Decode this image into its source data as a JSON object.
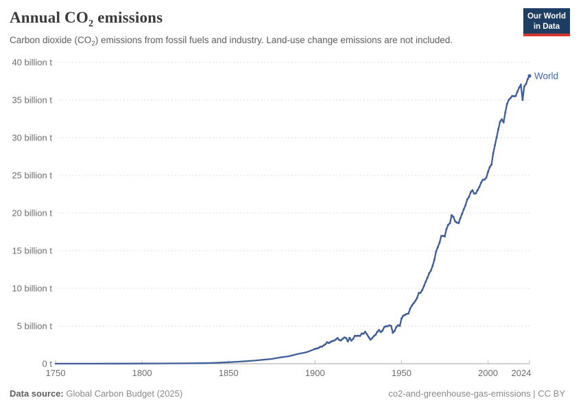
{
  "header": {
    "title_pre": "Annual CO",
    "title_sub": "2",
    "title_post": " emissions",
    "subtitle_pre": "Carbon dioxide (CO",
    "subtitle_sub": "2",
    "subtitle_post": ") emissions from fossil fuels and industry. Land-use change emissions are not included.",
    "logo_line1": "Our World",
    "logo_line2": "in Data"
  },
  "footer": {
    "source_label": "Data source:",
    "source_value": "Global Carbon Budget (2025)",
    "slug": "co2-and-greenhouse-gas-emissions | CC BY"
  },
  "colors": {
    "line_blue": "#3f5d99",
    "entity_label_blue": "#4266a5",
    "logo_navy": "#1d3d63",
    "logo_red": "#d8352e",
    "gridline": "#dedede",
    "axis_line": "#a6a6a6",
    "tick_text": "#6d6d6d"
  },
  "chart_data": {
    "type": "line",
    "title": "Annual CO₂ emissions",
    "xlabel": "",
    "ylabel": "",
    "unit": "billion t",
    "xlim": [
      1750,
      2024
    ],
    "ylim": [
      0,
      40
    ],
    "grid": "dashed-horizontal",
    "legend_position": "end-of-line-label",
    "x_ticks": [
      1750,
      1800,
      1850,
      1900,
      1950,
      2000,
      2024
    ],
    "y_ticks": [
      0,
      5,
      10,
      15,
      20,
      25,
      30,
      35,
      40
    ],
    "y_tick_labels": [
      "0 t",
      "5 billion t",
      "10 billion t",
      "15 billion t",
      "20 billion t",
      "25 billion t",
      "30 billion t",
      "35 billion t",
      "40 billion t"
    ],
    "end_label": "World",
    "series": [
      {
        "name": "World",
        "color": "#3f5d99",
        "label_color": "#4266a5",
        "points": [
          [
            1750,
            0.009
          ],
          [
            1760,
            0.011
          ],
          [
            1770,
            0.013
          ],
          [
            1780,
            0.016
          ],
          [
            1790,
            0.02
          ],
          [
            1800,
            0.03
          ],
          [
            1810,
            0.035
          ],
          [
            1820,
            0.045
          ],
          [
            1830,
            0.066
          ],
          [
            1840,
            0.096
          ],
          [
            1850,
            0.197
          ],
          [
            1855,
            0.26
          ],
          [
            1860,
            0.34
          ],
          [
            1865,
            0.42
          ],
          [
            1870,
            0.53
          ],
          [
            1875,
            0.64
          ],
          [
            1880,
            0.84
          ],
          [
            1885,
            1.0
          ],
          [
            1890,
            1.3
          ],
          [
            1895,
            1.52
          ],
          [
            1900,
            1.96
          ],
          [
            1901,
            2.02
          ],
          [
            1902,
            2.08
          ],
          [
            1903,
            2.25
          ],
          [
            1904,
            2.27
          ],
          [
            1905,
            2.44
          ],
          [
            1906,
            2.58
          ],
          [
            1907,
            2.85
          ],
          [
            1908,
            2.75
          ],
          [
            1909,
            2.88
          ],
          [
            1910,
            3.01
          ],
          [
            1911,
            3.05
          ],
          [
            1912,
            3.21
          ],
          [
            1913,
            3.41
          ],
          [
            1914,
            3.15
          ],
          [
            1915,
            3.1
          ],
          [
            1916,
            3.31
          ],
          [
            1917,
            3.49
          ],
          [
            1918,
            3.4
          ],
          [
            1919,
            2.96
          ],
          [
            1920,
            3.43
          ],
          [
            1921,
            3.07
          ],
          [
            1922,
            3.29
          ],
          [
            1923,
            3.7
          ],
          [
            1924,
            3.69
          ],
          [
            1925,
            3.72
          ],
          [
            1926,
            3.69
          ],
          [
            1927,
            4.01
          ],
          [
            1928,
            3.98
          ],
          [
            1929,
            4.24
          ],
          [
            1930,
            3.92
          ],
          [
            1931,
            3.53
          ],
          [
            1932,
            3.19
          ],
          [
            1933,
            3.38
          ],
          [
            1934,
            3.66
          ],
          [
            1935,
            3.85
          ],
          [
            1936,
            4.24
          ],
          [
            1937,
            4.47
          ],
          [
            1938,
            4.21
          ],
          [
            1939,
            4.39
          ],
          [
            1940,
            4.85
          ],
          [
            1941,
            4.97
          ],
          [
            1942,
            4.98
          ],
          [
            1943,
            5.09
          ],
          [
            1944,
            5.03
          ],
          [
            1945,
            4.1
          ],
          [
            1946,
            4.36
          ],
          [
            1947,
            4.85
          ],
          [
            1948,
            5.12
          ],
          [
            1949,
            5.01
          ],
          [
            1950,
            6.0
          ],
          [
            1951,
            6.37
          ],
          [
            1952,
            6.47
          ],
          [
            1953,
            6.62
          ],
          [
            1954,
            6.66
          ],
          [
            1955,
            7.32
          ],
          [
            1956,
            7.72
          ],
          [
            1957,
            8.03
          ],
          [
            1958,
            8.34
          ],
          [
            1959,
            8.74
          ],
          [
            1960,
            9.39
          ],
          [
            1961,
            9.42
          ],
          [
            1962,
            9.78
          ],
          [
            1963,
            10.32
          ],
          [
            1964,
            10.89
          ],
          [
            1965,
            11.42
          ],
          [
            1966,
            12.0
          ],
          [
            1967,
            12.37
          ],
          [
            1968,
            13.01
          ],
          [
            1969,
            13.79
          ],
          [
            1970,
            14.9
          ],
          [
            1971,
            15.46
          ],
          [
            1972,
            16.08
          ],
          [
            1973,
            16.95
          ],
          [
            1974,
            16.98
          ],
          [
            1975,
            16.89
          ],
          [
            1976,
            17.87
          ],
          [
            1977,
            18.45
          ],
          [
            1978,
            18.65
          ],
          [
            1979,
            19.7
          ],
          [
            1980,
            19.5
          ],
          [
            1981,
            18.9
          ],
          [
            1982,
            18.74
          ],
          [
            1983,
            18.66
          ],
          [
            1984,
            19.3
          ],
          [
            1985,
            19.88
          ],
          [
            1986,
            20.51
          ],
          [
            1987,
            21.01
          ],
          [
            1988,
            21.81
          ],
          [
            1989,
            22.12
          ],
          [
            1990,
            22.76
          ],
          [
            1991,
            23.03
          ],
          [
            1992,
            22.58
          ],
          [
            1993,
            22.61
          ],
          [
            1994,
            23.04
          ],
          [
            1995,
            23.46
          ],
          [
            1996,
            24.02
          ],
          [
            1997,
            24.41
          ],
          [
            1998,
            24.45
          ],
          [
            1999,
            24.69
          ],
          [
            2000,
            25.45
          ],
          [
            2001,
            26.09
          ],
          [
            2002,
            26.42
          ],
          [
            2003,
            27.88
          ],
          [
            2004,
            29.0
          ],
          [
            2005,
            30.07
          ],
          [
            2006,
            31.13
          ],
          [
            2007,
            32.13
          ],
          [
            2008,
            32.43
          ],
          [
            2009,
            32.04
          ],
          [
            2010,
            33.34
          ],
          [
            2011,
            34.46
          ],
          [
            2012,
            35.01
          ],
          [
            2013,
            35.26
          ],
          [
            2014,
            35.54
          ],
          [
            2015,
            35.5
          ],
          [
            2016,
            35.52
          ],
          [
            2017,
            36.1
          ],
          [
            2018,
            36.65
          ],
          [
            2019,
            37.04
          ],
          [
            2020,
            35.01
          ],
          [
            2021,
            36.82
          ],
          [
            2022,
            37.15
          ],
          [
            2023,
            37.79
          ],
          [
            2024,
            38.2
          ]
        ]
      }
    ]
  }
}
